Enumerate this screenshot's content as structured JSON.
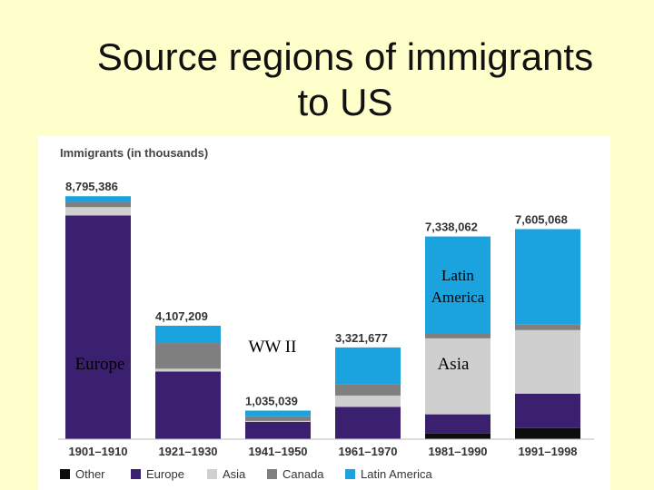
{
  "slide": {
    "title_line1": "Source regions of immigrants",
    "title_line2": "to US"
  },
  "annotations": {
    "europe": "Europe",
    "ww2": "WW II",
    "latin_america_1": "Latin",
    "latin_america_2": "America",
    "asia": "Asia"
  },
  "colors": {
    "Other": "#0d0d0d",
    "Europe": "#3b2070",
    "Asia": "#cfcfcf",
    "Canada": "#7f7f7f",
    "Latin America": "#1ba3e0",
    "background": "#FFFFCC"
  },
  "chart_data": {
    "type": "bar",
    "stacked": true,
    "ylabel": "Immigrants (in thousands)",
    "categories": [
      "1901–1910",
      "1921–1930",
      "1941–1950",
      "1961–1970",
      "1981–1990",
      "1991–1998"
    ],
    "totals": [
      "8,795,386",
      "4,107,209",
      "1,035,039",
      "3,321,677",
      "7,338,062",
      "7,605,068"
    ],
    "total_values": [
      8795386,
      4107209,
      1035039,
      3321677,
      7338062,
      7605068
    ],
    "ylim": [
      0,
      9000000
    ],
    "series": [
      {
        "name": "Other",
        "values": [
          0,
          0,
          10000,
          20000,
          200000,
          400000
        ]
      },
      {
        "name": "Europe",
        "values": [
          8100000,
          2450000,
          620000,
          1150000,
          700000,
          1250000
        ]
      },
      {
        "name": "Asia",
        "values": [
          300000,
          100000,
          30000,
          410000,
          2750000,
          2300000
        ]
      },
      {
        "name": "Canada",
        "values": [
          190000,
          930000,
          170000,
          420000,
          160000,
          200000
        ]
      },
      {
        "name": "Latin America",
        "values": [
          205386,
          627209,
          205039,
          1321677,
          3528062,
          3455068
        ]
      }
    ],
    "legend": [
      "Other",
      "Europe",
      "Asia",
      "Canada",
      "Latin America"
    ],
    "legend_position": "bottom",
    "grid": false
  }
}
